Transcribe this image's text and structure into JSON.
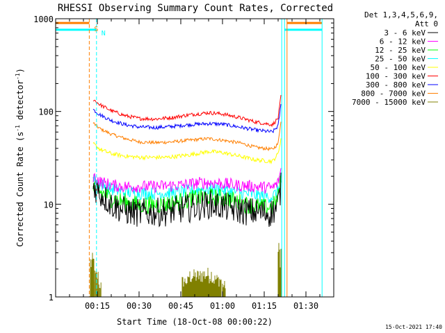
{
  "chart_data": {
    "type": "line",
    "title": "RHESSI Observing Summary Count Rates, Corrected",
    "xlabel": "Start Time (18-Oct-08 00:00:22)",
    "ylabel": "Corrected Count Rate (s⁻¹ detector⁻¹)",
    "ylabel_parts": {
      "a": "Corrected Count Rate (s",
      "b": "-1",
      "c": " detector",
      "d": "-1",
      "e": ")"
    },
    "y_scale": "log",
    "ylim": [
      1,
      1000
    ],
    "xlim_minutes": [
      0,
      100
    ],
    "x_ticks": [
      {
        "t": 15,
        "label": "00:15"
      },
      {
        "t": 30,
        "label": "00:30"
      },
      {
        "t": 45,
        "label": "00:45"
      },
      {
        "t": 60,
        "label": "01:00"
      },
      {
        "t": 75,
        "label": "01:15"
      },
      {
        "t": 90,
        "label": "01:30"
      }
    ],
    "y_ticks": [
      {
        "v": 1,
        "label": "1"
      },
      {
        "v": 10,
        "label": "10"
      },
      {
        "v": 100,
        "label": "100"
      },
      {
        "v": 1000,
        "label": "1000"
      }
    ],
    "legend_header": [
      "Det 1,3,4,5,6,9,",
      "Att 0"
    ],
    "legend_position": "right",
    "footer": "15-Oct-2021 17:40",
    "markers": [
      {
        "label": "S",
        "t": 12.1,
        "color": "#ff7f00"
      },
      {
        "label": "N",
        "t": 14.7,
        "color": "#00ffff"
      }
    ],
    "vertical_lines": [
      {
        "t": 12.1,
        "color": "#ff7f00",
        "dashed": true
      },
      {
        "t": 14.7,
        "color": "#00ffff",
        "dashed": true
      },
      {
        "t": 81.3,
        "color": "#00ffff",
        "dashed": false
      },
      {
        "t": 82.3,
        "color": "#00ffff",
        "dashed": false
      },
      {
        "t": 83.2,
        "color": "#ff7f00",
        "dashed": false
      },
      {
        "t": 95.8,
        "color": "#00ffff",
        "dashed": false
      }
    ],
    "flag_bars": [
      {
        "name": "S",
        "color": "#ff7f00",
        "segments": [
          [
            0,
            12.1,
            900
          ],
          [
            83.2,
            95.8,
            900
          ]
        ]
      },
      {
        "name": "N",
        "color": "#00ffff",
        "segments": [
          [
            0,
            14.7,
            760
          ],
          [
            82.3,
            95.8,
            760
          ]
        ]
      }
    ],
    "series": [
      {
        "name": "3 - 6 keV",
        "color": "#000000",
        "noise": 0.35,
        "points": [
          [
            13.5,
            16
          ],
          [
            16,
            13
          ],
          [
            20,
            10
          ],
          [
            25,
            8.5
          ],
          [
            30,
            8
          ],
          [
            40,
            8.3
          ],
          [
            50,
            9.3
          ],
          [
            55,
            10
          ],
          [
            60,
            9.5
          ],
          [
            65,
            8.7
          ],
          [
            70,
            8.3
          ],
          [
            77,
            8
          ],
          [
            79.5,
            9
          ],
          [
            80.5,
            12
          ],
          [
            81.2,
            17
          ]
        ]
      },
      {
        "name": "6 - 12 keV",
        "color": "#ff00ff",
        "noise": 0.15,
        "points": [
          [
            13.5,
            20
          ],
          [
            16,
            17.5
          ],
          [
            20,
            16
          ],
          [
            25,
            15.5
          ],
          [
            35,
            15.5
          ],
          [
            45,
            16
          ],
          [
            52,
            17
          ],
          [
            58,
            17
          ],
          [
            65,
            16
          ],
          [
            72,
            15.5
          ],
          [
            78,
            15
          ],
          [
            80,
            17
          ],
          [
            81.2,
            25
          ]
        ]
      },
      {
        "name": "12 - 25 keV",
        "color": "#00ff00",
        "noise": 0.22,
        "points": [
          [
            13.5,
            15
          ],
          [
            16,
            13.5
          ],
          [
            20,
            11.5
          ],
          [
            25,
            10.5
          ],
          [
            30,
            9.8
          ],
          [
            40,
            10
          ],
          [
            50,
            11.5
          ],
          [
            55,
            12
          ],
          [
            62,
            11.5
          ],
          [
            68,
            10
          ],
          [
            75,
            9.2
          ],
          [
            78,
            9.3
          ],
          [
            80,
            12
          ],
          [
            81.2,
            20
          ]
        ]
      },
      {
        "name": "25 - 50 keV",
        "color": "#00ffff",
        "noise": 0.16,
        "points": [
          [
            13.5,
            19
          ],
          [
            16,
            16.5
          ],
          [
            20,
            14.5
          ],
          [
            25,
            13.5
          ],
          [
            35,
            13
          ],
          [
            45,
            13.5
          ],
          [
            52,
            14.5
          ],
          [
            58,
            14.5
          ],
          [
            65,
            13.5
          ],
          [
            72,
            12.5
          ],
          [
            78,
            12
          ],
          [
            80,
            14
          ],
          [
            81.2,
            22
          ]
        ]
      },
      {
        "name": "50 - 100 keV",
        "color": "#ffff00",
        "noise": 0.05,
        "points": [
          [
            13.5,
            45
          ],
          [
            16,
            39
          ],
          [
            20,
            35
          ],
          [
            25,
            33
          ],
          [
            30,
            32
          ],
          [
            40,
            32
          ],
          [
            48,
            34
          ],
          [
            55,
            37
          ],
          [
            60,
            36
          ],
          [
            66,
            33
          ],
          [
            72,
            30
          ],
          [
            78,
            29
          ],
          [
            80,
            35
          ],
          [
            81.2,
            55
          ]
        ]
      },
      {
        "name": "100 - 300 keV",
        "color": "#ff0000",
        "noise": 0.045,
        "points": [
          [
            13.5,
            135
          ],
          [
            16,
            118
          ],
          [
            20,
            102
          ],
          [
            25,
            90
          ],
          [
            30,
            84
          ],
          [
            36,
            83
          ],
          [
            42,
            86
          ],
          [
            48,
            92
          ],
          [
            55,
            97
          ],
          [
            60,
            94
          ],
          [
            66,
            86
          ],
          [
            72,
            77
          ],
          [
            78,
            72
          ],
          [
            80,
            85
          ],
          [
            81.2,
            160
          ]
        ]
      },
      {
        "name": "300 - 800 keV",
        "color": "#0000ff",
        "noise": 0.045,
        "points": [
          [
            13.5,
            105
          ],
          [
            16,
            92
          ],
          [
            20,
            80
          ],
          [
            25,
            72
          ],
          [
            30,
            68
          ],
          [
            36,
            67
          ],
          [
            42,
            69
          ],
          [
            48,
            72
          ],
          [
            55,
            74
          ],
          [
            60,
            73
          ],
          [
            66,
            68
          ],
          [
            72,
            63
          ],
          [
            78,
            60
          ],
          [
            80,
            70
          ],
          [
            81.2,
            130
          ]
        ]
      },
      {
        "name": "800 - 7000 keV",
        "color": "#ff7f00",
        "noise": 0.04,
        "points": [
          [
            13.5,
            75
          ],
          [
            16,
            65
          ],
          [
            20,
            57
          ],
          [
            25,
            51
          ],
          [
            30,
            47
          ],
          [
            36,
            46
          ],
          [
            42,
            47
          ],
          [
            48,
            49
          ],
          [
            55,
            51
          ],
          [
            60,
            49
          ],
          [
            66,
            46
          ],
          [
            72,
            41
          ],
          [
            78,
            39
          ],
          [
            80,
            45
          ],
          [
            81.2,
            90
          ]
        ]
      },
      {
        "name": "7000 - 15000 keV",
        "color": "#808000",
        "noise": 0,
        "bars": [
          [
            12.5,
            13.8,
            3.0
          ],
          [
            13.8,
            15.3,
            2.0
          ],
          [
            15.3,
            16.5,
            1.5
          ],
          [
            45.5,
            48.0,
            1.7
          ],
          [
            48.0,
            52.0,
            2.0
          ],
          [
            52.0,
            56.0,
            2.1
          ],
          [
            56.0,
            59.5,
            1.8
          ],
          [
            60.0,
            61.0,
            1.5
          ],
          [
            80.0,
            81.3,
            4.0
          ]
        ]
      }
    ]
  }
}
